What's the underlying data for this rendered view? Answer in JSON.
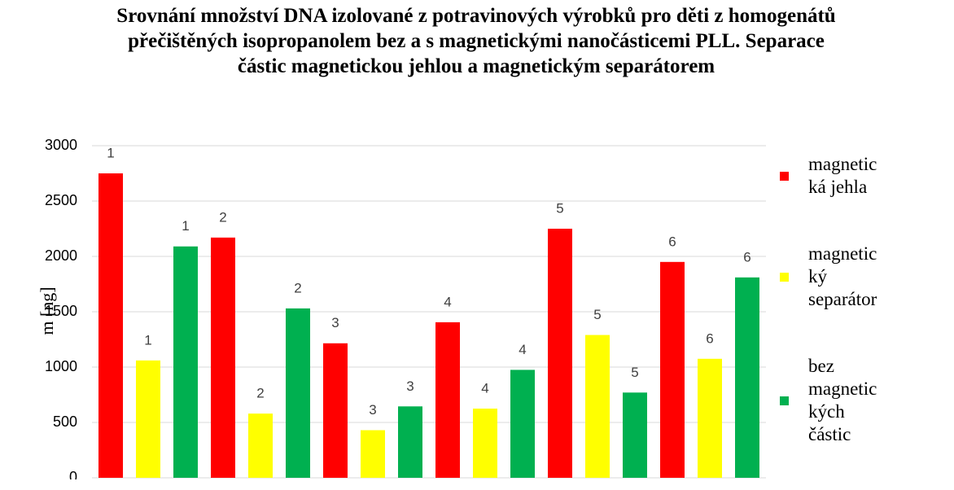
{
  "chart_data": {
    "type": "bar",
    "title": "Srovnání množství DNA izolované z potravinových výrobků pro děti z homogenátů přečištěných isopropanolem bez a s magnetickými nanočásticemi PLL. Separace částic magnetickou jehlou a magnetickým separátorem",
    "y_label": "m [ng]",
    "categories": [
      "1",
      "2",
      "3",
      "4",
      "5",
      "6"
    ],
    "series": [
      {
        "name": "magnetická jehla",
        "color": "#ff0000",
        "values": [
          2750,
          2170,
          1215,
          1405,
          2250,
          1950
        ]
      },
      {
        "name": "magnetický separátor",
        "color": "#ffff00",
        "values": [
          1060,
          580,
          430,
          625,
          1290,
          1075
        ]
      },
      {
        "name": "bez magnetických částic",
        "color": "#00b050",
        "values": [
          2090,
          1530,
          645,
          975,
          770,
          1810
        ]
      }
    ],
    "ylim": [
      0,
      3000
    ],
    "yticks": [
      0,
      500,
      1000,
      1500,
      2000,
      2500,
      3000
    ],
    "grid": true,
    "legend": "right"
  }
}
